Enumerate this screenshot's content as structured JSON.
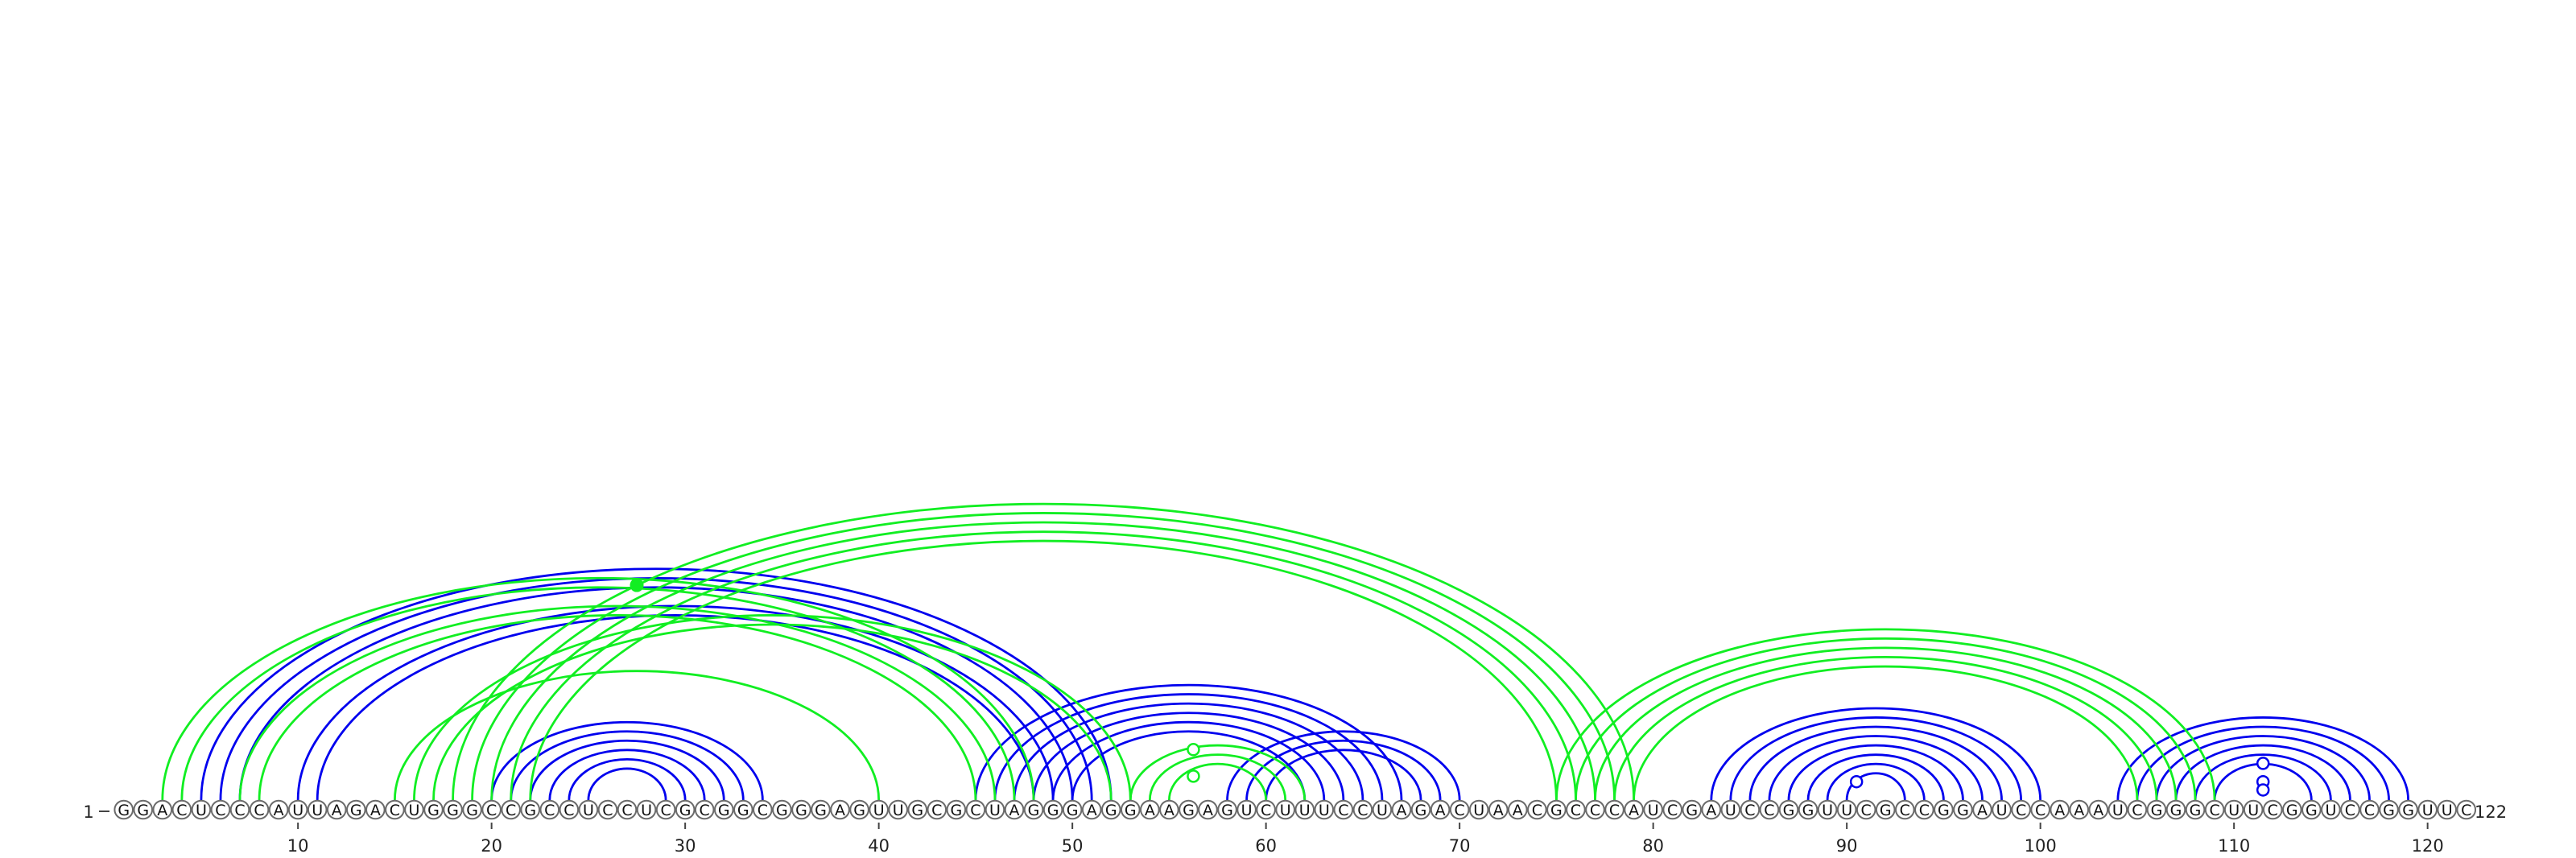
{
  "sequence": "GGACUCCCAUUAGACUGGGCCGCCUCCUCGCGGCGGGAGUUGCGCUAGGGAGGAAGAGUCUUUCCUAGACUAACGCCCAUCGAUCCGGUUCGCCGGAUCCAAAUCGGGCUUCGGUCCGGUUC",
  "start_label": "1",
  "end_label": "122",
  "position_ticks": [
    "10",
    "20",
    "30",
    "40",
    "50",
    "60",
    "70",
    "80",
    "90",
    "100",
    "110",
    "120"
  ],
  "colors": {
    "blue": "#0000ee",
    "green": "#11ee22"
  },
  "arc_sets": [
    {
      "color": "blue",
      "pairs": [
        [
          5,
          52
        ],
        [
          6,
          51
        ],
        [
          7,
          50
        ],
        [
          10,
          49
        ],
        [
          11,
          48
        ]
      ]
    },
    {
      "color": "blue",
      "pairs": [
        [
          20,
          34
        ],
        [
          21,
          33
        ],
        [
          22,
          32
        ],
        [
          23,
          31
        ],
        [
          24,
          30
        ],
        [
          25,
          29
        ]
      ]
    },
    {
      "color": "blue",
      "pairs": [
        [
          45,
          67
        ],
        [
          46,
          66
        ],
        [
          47,
          65
        ],
        [
          48,
          64
        ],
        [
          49,
          63
        ],
        [
          50,
          62
        ]
      ]
    },
    {
      "color": "blue",
      "pairs": [
        [
          58,
          70
        ],
        [
          59,
          69
        ],
        [
          60,
          68
        ]
      ]
    },
    {
      "color": "blue",
      "pairs": [
        [
          83,
          100
        ],
        [
          84,
          99
        ],
        [
          85,
          98
        ],
        [
          86,
          97
        ],
        [
          87,
          96
        ],
        [
          88,
          95
        ],
        [
          89,
          94
        ],
        [
          90,
          93
        ]
      ]
    },
    {
      "color": "blue",
      "pairs": [
        [
          104,
          119
        ],
        [
          105,
          118
        ],
        [
          106,
          117
        ],
        [
          107,
          116
        ],
        [
          108,
          115
        ],
        [
          109,
          114
        ]
      ]
    },
    {
      "color": "green",
      "pairs": [
        [
          3,
          48
        ],
        [
          4,
          47
        ],
        [
          7,
          46
        ],
        [
          8,
          45
        ]
      ]
    },
    {
      "color": "green",
      "pairs": [
        [
          15,
          40
        ]
      ]
    },
    {
      "color": "green",
      "pairs": [
        [
          18,
          79
        ],
        [
          19,
          78
        ],
        [
          20,
          77
        ],
        [
          21,
          76
        ],
        [
          22,
          75
        ]
      ]
    },
    {
      "color": "green",
      "pairs": [
        [
          16,
          53
        ],
        [
          17,
          52
        ]
      ]
    },
    {
      "color": "green",
      "pairs": [
        [
          53,
          62
        ],
        [
          54,
          61
        ],
        [
          55,
          60
        ]
      ]
    },
    {
      "color": "green",
      "pairs": [
        [
          75,
          109
        ],
        [
          76,
          108
        ],
        [
          77,
          107
        ],
        [
          78,
          106
        ],
        [
          79,
          105
        ]
      ]
    }
  ],
  "open_circle_markers": [
    {
      "color": "green",
      "position": 56.25,
      "level": 0.55
    },
    {
      "color": "green",
      "position": 56.25,
      "level": 0.26
    },
    {
      "color": "blue",
      "position": 90.5,
      "level": 0.2
    },
    {
      "color": "blue",
      "position": 111.5,
      "level": 0.4
    },
    {
      "color": "blue",
      "position": 111.5,
      "level": 0.2
    },
    {
      "color": "blue",
      "position": 111.5,
      "level": 0.11
    }
  ],
  "filled_markers": [
    {
      "color": "green",
      "position": 27.5,
      "arc": [
        18,
        79
      ]
    }
  ]
}
